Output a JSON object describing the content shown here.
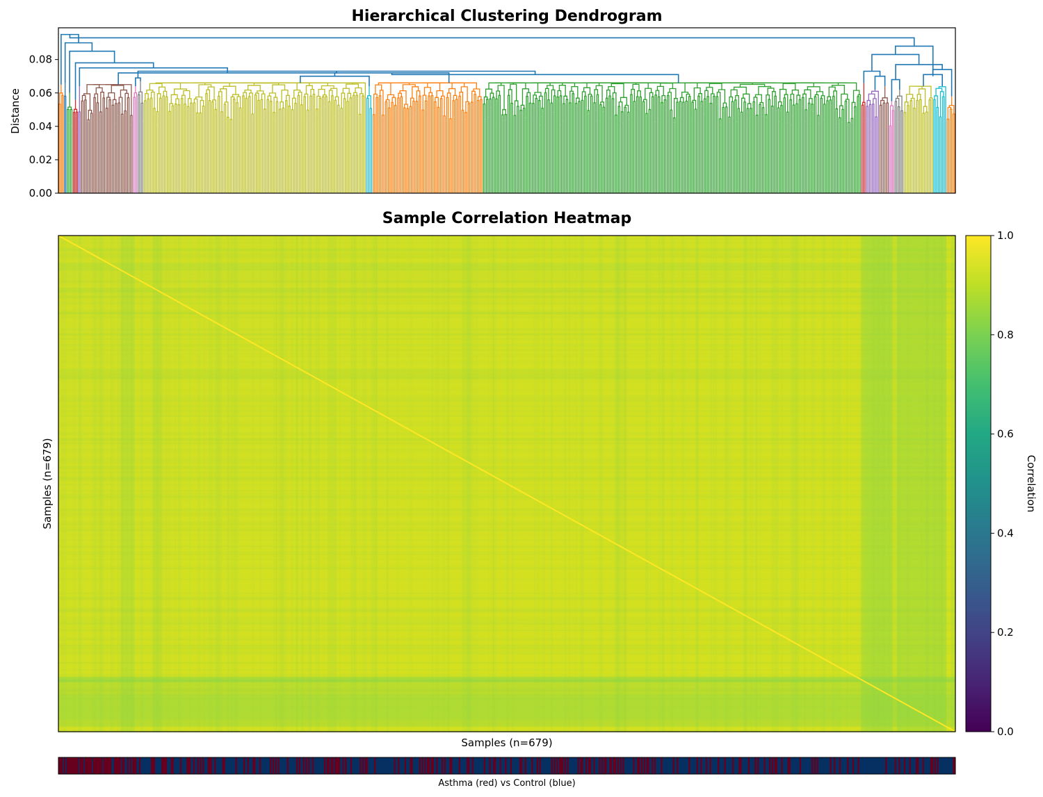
{
  "chart_data": [
    {
      "type": "dendrogram",
      "title": "Hierarchical Clustering Dendrogram",
      "xlabel": "",
      "ylabel": "Distance",
      "ylim": [
        0,
        0.099
      ],
      "yticks": [
        "0.00",
        "0.02",
        "0.04",
        "0.06",
        "0.08"
      ],
      "above_threshold_color": "#1f77b4",
      "clusters": [
        {
          "color": "#ff7f0e",
          "start": 0.0,
          "end": 0.006,
          "height": 0.065
        },
        {
          "color": "#1f77b4",
          "start": 0.006,
          "end": 0.009,
          "height": 0.066
        },
        {
          "color": "#2ca02c",
          "start": 0.009,
          "end": 0.016,
          "height": 0.06
        },
        {
          "color": "#d62728",
          "start": 0.016,
          "end": 0.022,
          "height": 0.056
        },
        {
          "color": "#9467bd",
          "start": 0.022,
          "end": 0.025,
          "height": 0.064
        },
        {
          "color": "#8c564b",
          "start": 0.025,
          "end": 0.083,
          "height": 0.065
        },
        {
          "color": "#e377c2",
          "start": 0.083,
          "end": 0.088,
          "height": 0.064
        },
        {
          "color": "#7f7f7f",
          "start": 0.088,
          "end": 0.095,
          "height": 0.067
        },
        {
          "color": "#bcbd22",
          "start": 0.095,
          "end": 0.343,
          "height": 0.066
        },
        {
          "color": "#17becf",
          "start": 0.343,
          "end": 0.35,
          "height": 0.064
        },
        {
          "color": "#ff7f0e",
          "start": 0.35,
          "end": 0.473,
          "height": 0.066
        },
        {
          "color": "#2ca02c",
          "start": 0.473,
          "end": 0.895,
          "height": 0.066
        },
        {
          "color": "#d62728",
          "start": 0.895,
          "end": 0.9,
          "height": 0.066
        },
        {
          "color": "#9467bd",
          "start": 0.9,
          "end": 0.915,
          "height": 0.062
        },
        {
          "color": "#8c564b",
          "start": 0.915,
          "end": 0.926,
          "height": 0.064
        },
        {
          "color": "#e377c2",
          "start": 0.926,
          "end": 0.932,
          "height": 0.055
        },
        {
          "color": "#7f7f7f",
          "start": 0.932,
          "end": 0.942,
          "height": 0.062
        },
        {
          "color": "#bcbd22",
          "start": 0.942,
          "end": 0.975,
          "height": 0.064
        },
        {
          "color": "#17becf",
          "start": 0.975,
          "end": 0.99,
          "height": 0.064
        },
        {
          "color": "#ff7f0e",
          "start": 0.99,
          "end": 1.0,
          "height": 0.058
        }
      ]
    },
    {
      "type": "heatmap",
      "title": "Sample Correlation Heatmap",
      "xlabel": "Samples (n=679)",
      "ylabel": "Samples (n=679)",
      "n_samples": 679,
      "colorbar": {
        "label": "Correlation",
        "range": [
          0.0,
          1.0
        ],
        "ticks": [
          "0.0",
          "0.2",
          "0.4",
          "0.6",
          "0.8",
          "1.0"
        ],
        "colormap": "viridis"
      },
      "value_range_observed": [
        0.78,
        1.0
      ],
      "typical_value": 0.93
    },
    {
      "type": "annotation_bar",
      "label": "Asthma (red) vs Control (blue)",
      "colors": {
        "asthma": "#67001f",
        "control": "#053061"
      }
    }
  ]
}
